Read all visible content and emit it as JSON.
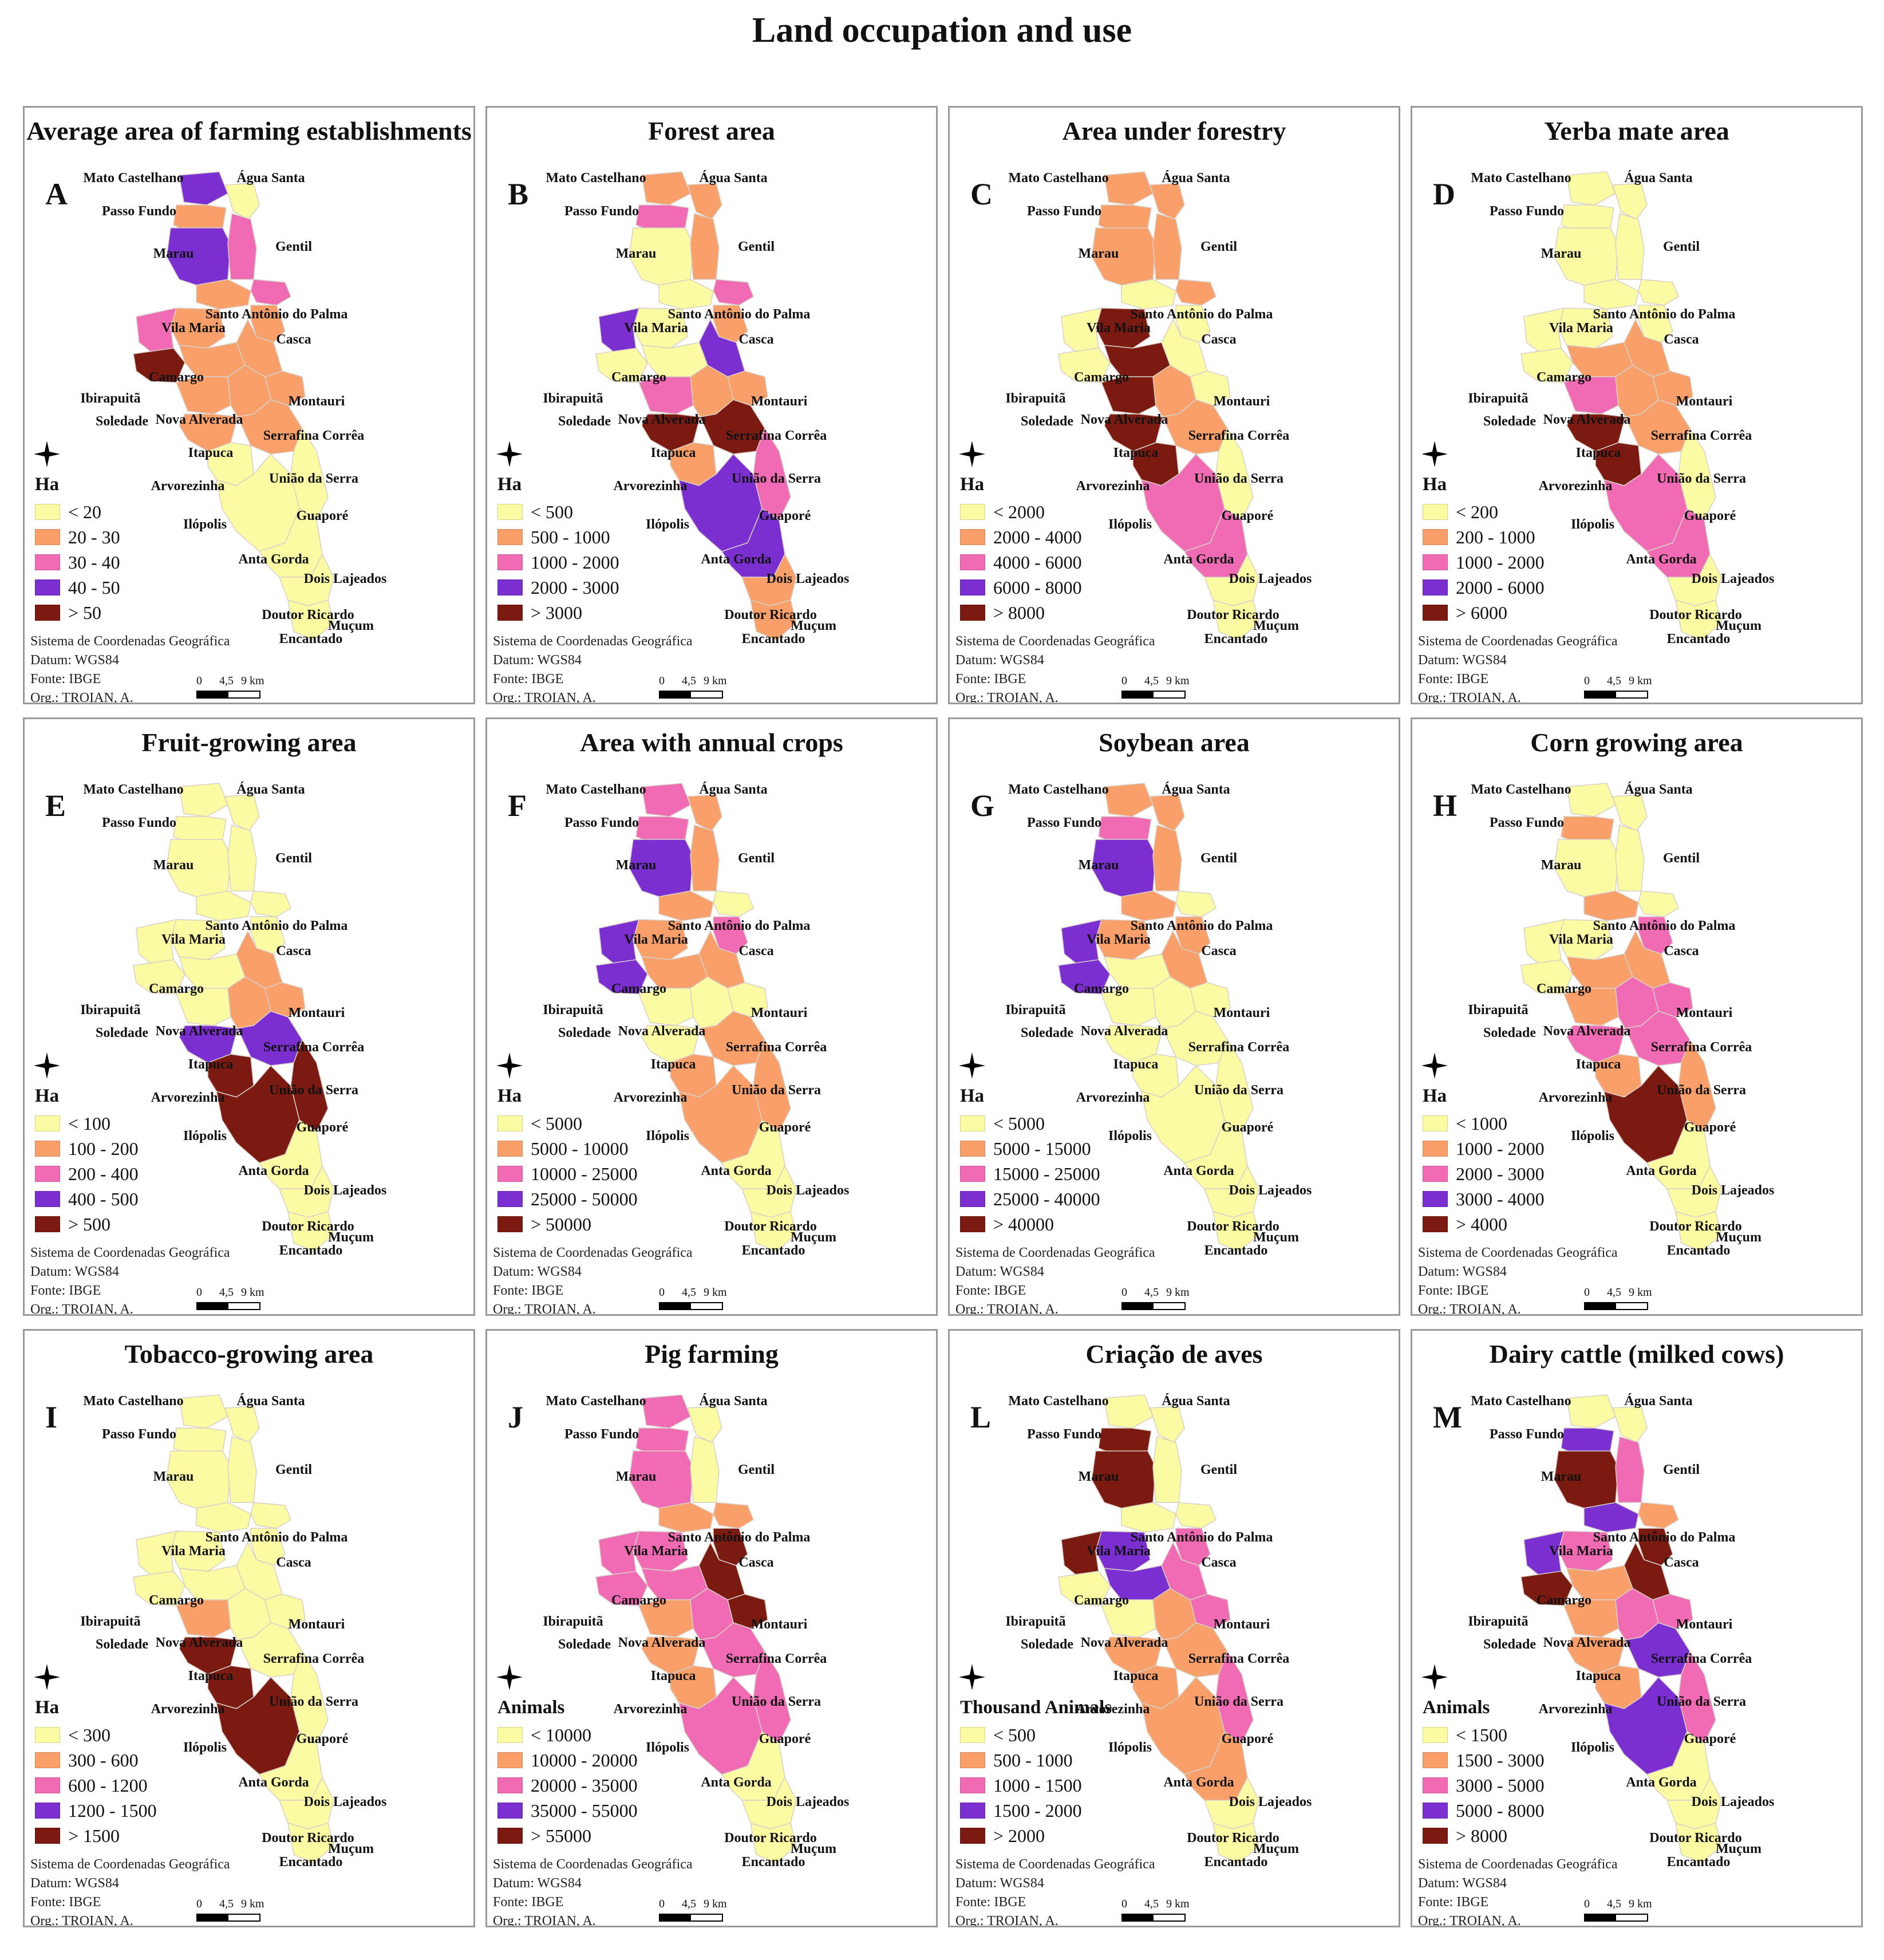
{
  "title": "Land occupation and use",
  "colors": {
    "c1": "#fbfba4",
    "c2": "#f9a06a",
    "c3": "#f06ab4",
    "c4": "#7b2fd0",
    "c5": "#7a1a10"
  },
  "municipalities": [
    "Mato Castelhano",
    "Água Santa",
    "Passo Fundo",
    "Marau",
    "Gentil",
    "Santo Antônio do Palma",
    "Vila Maria",
    "Casca",
    "Camargo",
    "Ibirapuitã",
    "Montauri",
    "Soledade",
    "Nova Alverada",
    "Serrafina Corrêa",
    "Itapuca",
    "União da Serra",
    "Arvorezinha",
    "Guaporé",
    "Ilópolis",
    "Anta Gorda",
    "Dois Lajeados",
    "Doutor Ricardo",
    "Muçum",
    "Encantado"
  ],
  "credits": {
    "system": "Sistema de Coordenadas Geográfica",
    "datum": "Datum: WGS84",
    "source": "Fonte: IBGE",
    "org": "Org.: TROIAN, A.",
    "scale_labels": [
      "0",
      "4,5",
      "9 km"
    ]
  },
  "panels": [
    {
      "letter": "A",
      "title": "Average area of farming establishments",
      "unit": "Ha",
      "legend": [
        "< 20",
        "20 - 30",
        "30 - 40",
        "40 - 50",
        "> 50"
      ],
      "classes": [
        4,
        1,
        2,
        4,
        3,
        3,
        2,
        2,
        2,
        3,
        2,
        5,
        2,
        2,
        2,
        2,
        2,
        2,
        1,
        1,
        1,
        1,
        1,
        1
      ]
    },
    {
      "letter": "B",
      "title": "Forest area",
      "unit": "Ha",
      "legend": [
        "< 500",
        "500 - 1000",
        "1000 - 2000",
        "2000 - 3000",
        "> 3000"
      ],
      "classes": [
        2,
        2,
        3,
        1,
        2,
        3,
        1,
        2,
        1,
        4,
        4,
        1,
        1,
        2,
        3,
        2,
        5,
        5,
        2,
        4,
        3,
        4,
        2,
        2
      ]
    },
    {
      "letter": "C",
      "title": "Area under forestry",
      "unit": "Ha",
      "legend": [
        "< 2000",
        "2000 - 4000",
        "4000 - 6000",
        "6000 - 8000",
        "> 8000"
      ],
      "classes": [
        2,
        2,
        2,
        2,
        2,
        2,
        1,
        1,
        5,
        1,
        1,
        1,
        5,
        1,
        5,
        2,
        5,
        2,
        5,
        3,
        1,
        3,
        1,
        1
      ]
    },
    {
      "letter": "D",
      "title": "Yerba mate area",
      "unit": "Ha",
      "legend": [
        "< 200",
        "200 - 1000",
        "1000 - 2000",
        "2000 - 6000",
        "> 6000"
      ],
      "classes": [
        1,
        1,
        1,
        1,
        1,
        1,
        1,
        1,
        1,
        1,
        2,
        1,
        2,
        2,
        3,
        2,
        5,
        2,
        5,
        3,
        1,
        3,
        1,
        1
      ]
    },
    {
      "letter": "E",
      "title": "Fruit-growing area",
      "unit": "Ha",
      "legend": [
        "< 100",
        "100 - 200",
        "200 - 400",
        "400 - 500",
        "> 500"
      ],
      "classes": [
        1,
        1,
        1,
        1,
        1,
        1,
        1,
        1,
        1,
        1,
        2,
        1,
        1,
        2,
        1,
        2,
        4,
        4,
        5,
        5,
        5,
        1,
        1,
        1
      ]
    },
    {
      "letter": "F",
      "title": "Area with annual crops",
      "unit": "Ha",
      "legend": [
        "< 5000",
        "5000 - 10000",
        "10000 - 25000",
        "25000 - 50000",
        "> 50000"
      ],
      "classes": [
        3,
        2,
        3,
        4,
        2,
        1,
        2,
        3,
        2,
        4,
        2,
        4,
        2,
        1,
        1,
        1,
        1,
        2,
        2,
        2,
        2,
        1,
        1,
        1
      ]
    },
    {
      "letter": "G",
      "title": "Soybean area",
      "unit": "Ha",
      "legend": [
        "< 5000",
        "5000 - 15000",
        "15000 - 25000",
        "25000 - 40000",
        "> 40000"
      ],
      "classes": [
        2,
        2,
        3,
        4,
        2,
        1,
        2,
        2,
        2,
        4,
        2,
        4,
        1,
        1,
        1,
        1,
        1,
        1,
        1,
        1,
        1,
        1,
        1,
        1
      ]
    },
    {
      "letter": "H",
      "title": "Corn growing area",
      "unit": "Ha",
      "legend": [
        "< 1000",
        "1000 - 2000",
        "2000 - 3000",
        "3000 - 4000",
        "> 4000"
      ],
      "classes": [
        1,
        1,
        2,
        1,
        1,
        1,
        2,
        3,
        1,
        1,
        2,
        1,
        2,
        3,
        2,
        3,
        3,
        3,
        2,
        5,
        2,
        1,
        1,
        1
      ]
    },
    {
      "letter": "I",
      "title": "Tobacco-growing area",
      "unit": "Ha",
      "legend": [
        "< 300",
        "300 - 600",
        "600 - 1200",
        "1200 - 1500",
        "> 1500"
      ],
      "classes": [
        1,
        1,
        1,
        1,
        1,
        1,
        1,
        1,
        1,
        1,
        1,
        1,
        1,
        1,
        2,
        1,
        5,
        1,
        5,
        5,
        1,
        1,
        1,
        1
      ]
    },
    {
      "letter": "J",
      "title": "Pig farming",
      "unit": "Animals",
      "legend": [
        "< 10000",
        "10000 - 20000",
        "20000 - 35000",
        "35000 - 55000",
        "> 55000"
      ],
      "classes": [
        3,
        1,
        3,
        3,
        1,
        2,
        2,
        5,
        3,
        3,
        5,
        3,
        3,
        5,
        2,
        3,
        2,
        3,
        2,
        3,
        3,
        1,
        1,
        1
      ]
    },
    {
      "letter": "L",
      "title": "Criação de aves",
      "unit": "Thousand Animals",
      "legend": [
        "< 500",
        "500 - 1000",
        "1000 - 1500",
        "1500 - 2000",
        "> 2000"
      ],
      "classes": [
        1,
        1,
        5,
        5,
        1,
        1,
        1,
        3,
        4,
        5,
        3,
        1,
        4,
        3,
        1,
        2,
        2,
        2,
        2,
        2,
        3,
        2,
        1,
        1
      ]
    },
    {
      "letter": "M",
      "title": "Dairy cattle (milked cows)",
      "unit": "Animals",
      "legend": [
        "< 1500",
        "1500 - 3000",
        "3000 - 5000",
        "5000 - 8000",
        "> 8000"
      ],
      "classes": [
        1,
        1,
        4,
        5,
        3,
        2,
        4,
        5,
        3,
        4,
        5,
        5,
        2,
        3,
        2,
        3,
        2,
        4,
        2,
        4,
        3,
        1,
        1,
        1
      ]
    }
  ]
}
